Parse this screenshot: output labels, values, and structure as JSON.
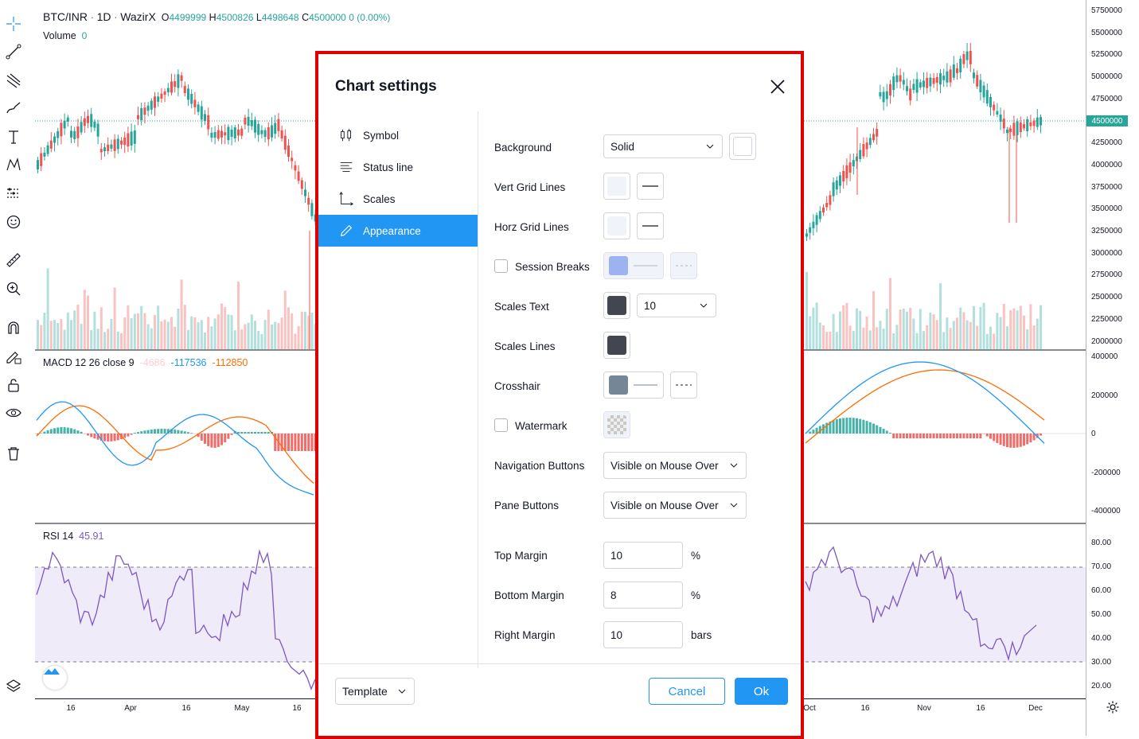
{
  "chart": {
    "symbol": "BTC/INR",
    "sep1": "·",
    "interval": "1D",
    "sep2": "·",
    "exchange": "WazirX",
    "o_label": "O",
    "o_val": "4499999",
    "h_label": "H",
    "h_val": "4500826",
    "l_label": "L",
    "l_val": "4498648",
    "c_label": "C",
    "c_val": "4500000",
    "change": "0 (0.00%)",
    "volume_label": "Volume",
    "volume_val": "0",
    "macd_label": "MACD 12 26 close 9",
    "macd_hist": "-4686",
    "macd_macd": "-117536",
    "macd_signal": "-112850",
    "rsi_label": "RSI 14",
    "rsi_val": "45.91",
    "current_price": "4500000",
    "price_ticks": [
      "5750000",
      "5500000",
      "5250000",
      "5000000",
      "4750000",
      "4250000",
      "4000000",
      "3750000",
      "3500000",
      "3250000",
      "3000000",
      "2750000",
      "2500000",
      "2250000",
      "2000000"
    ],
    "macd_ticks": [
      "400000",
      "200000",
      "0",
      "-200000",
      "-400000"
    ],
    "rsi_ticks": [
      "80.00",
      "70.00",
      "60.00",
      "50.00",
      "40.00",
      "30.00",
      "20.00"
    ],
    "time_ticks": [
      "16",
      "Apr",
      "16",
      "May",
      "16",
      "Oct",
      "16",
      "Nov",
      "16",
      "Dec"
    ],
    "colors": {
      "up": "#26a69a",
      "down": "#ef5350",
      "macd": "#2196f3",
      "signal": "#ff6d00",
      "rsi": "#7e57c2"
    }
  },
  "toolbar": {
    "icons": [
      "crosshair-icon",
      "trendline-icon",
      "pitchfork-icon",
      "brush-icon",
      "text-icon",
      "pattern-icon",
      "prediction-icon",
      "emoji-icon",
      "ruler-icon",
      "zoom-in-icon",
      "magnet-icon",
      "lock-drawing-icon",
      "lock-icon",
      "eye-icon",
      "trash-icon",
      "layers-icon",
      "settings-gear-icon"
    ]
  },
  "dialog": {
    "title": "Chart settings",
    "nav": [
      {
        "label": "Symbol",
        "icon": "candles-icon"
      },
      {
        "label": "Status line",
        "icon": "status-line-icon"
      },
      {
        "label": "Scales",
        "icon": "scales-icon"
      },
      {
        "label": "Appearance",
        "icon": "pencil-icon"
      }
    ],
    "active_nav": "Appearance",
    "rows": {
      "background": "Background",
      "background_value": "Solid",
      "vert_grid": "Vert Grid Lines",
      "horz_grid": "Horz Grid Lines",
      "session_breaks": "Session Breaks",
      "scales_text": "Scales Text",
      "scales_text_size": "10",
      "scales_lines": "Scales Lines",
      "crosshair": "Crosshair",
      "watermark": "Watermark",
      "nav_buttons": "Navigation Buttons",
      "nav_buttons_value": "Visible on Mouse Over",
      "pane_buttons": "Pane Buttons",
      "pane_buttons_value": "Visible on Mouse Over",
      "top_margin": "Top Margin",
      "top_margin_value": "10",
      "top_margin_unit": "%",
      "bottom_margin": "Bottom Margin",
      "bottom_margin_value": "8",
      "bottom_margin_unit": "%",
      "right_margin": "Right Margin",
      "right_margin_value": "10",
      "right_margin_unit": "bars"
    },
    "colors": {
      "grid": "#f0f3fa",
      "session": "#9db2f0",
      "scales_text": "#434651",
      "scales_lines": "#434651",
      "crosshair": "#758696",
      "accent": "#2196f3"
    },
    "template_label": "Template",
    "cancel_label": "Cancel",
    "ok_label": "Ok"
  }
}
